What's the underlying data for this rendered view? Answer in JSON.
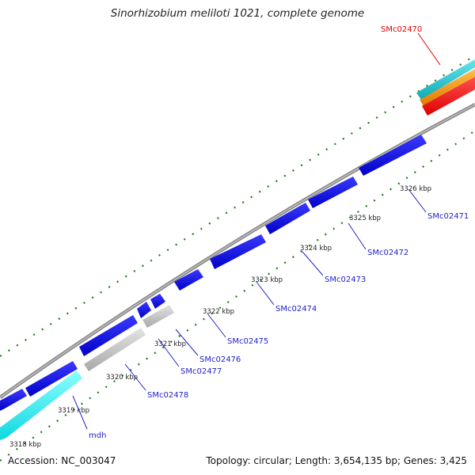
{
  "title": "Sinorhizobium meliloti 1021, complete genome",
  "footer": {
    "accession": "Accession: NC_003047",
    "stats": "Topology: circular; Length: 3,654,135 bp; Genes: 3,425"
  },
  "kbp_labels": [
    "3318 kbp",
    "3319 kbp",
    "3320 kbp",
    "3321 kbp",
    "3322 kbp",
    "3323 kbp",
    "3324 kbp",
    "3325 kbp",
    "3326 kbp"
  ],
  "gene_labels": [
    "mdh",
    "SMc02478",
    "SMc02477",
    "SMc02476",
    "SMc02475",
    "SMc02474",
    "SMc02473",
    "SMc02472",
    "SMc02471",
    "SMc02470"
  ],
  "colors": {
    "gene_blue": "#0a0adc",
    "gene_cyan": "#22f0f0",
    "gene_gray": "#c4c4c4",
    "backbone": "#8a8a8a",
    "tick_green": "#1a7a1a",
    "label_blue": "#2222cc",
    "label_red": "#dd0000",
    "highlight_red": "#ee1111",
    "highlight_orange": "#f0920a",
    "highlight_teal": "#20c4cc"
  }
}
